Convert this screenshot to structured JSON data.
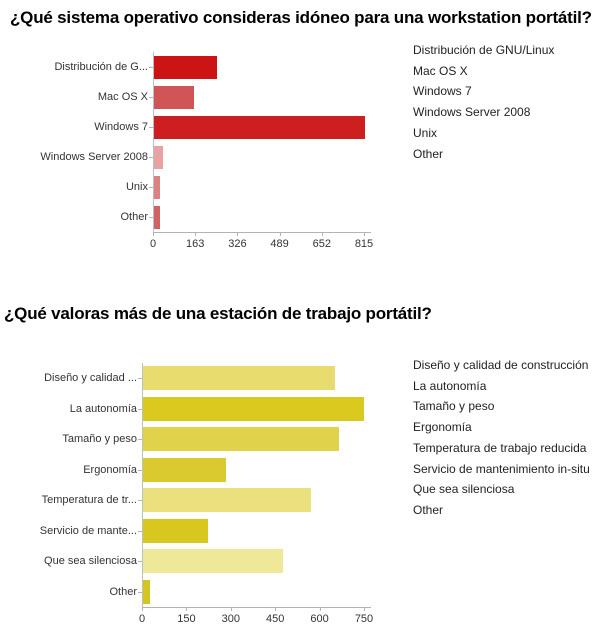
{
  "page_background": "#ffffff",
  "chart_data": [
    {
      "type": "bar",
      "orientation": "horizontal",
      "title": "¿Qué sistema operativo consideras idóneo para una workstation portátil?",
      "categories": [
        "Distribución de G...",
        "Mac OS X",
        "Windows 7",
        "Windows Server 2008",
        "Unix",
        "Other"
      ],
      "values": [
        245,
        155,
        815,
        34,
        23,
        22
      ],
      "bar_colors": [
        "#cc1414",
        "#cf5557",
        "#cd1f1f",
        "#e8a2a2",
        "#dd8181",
        "#d26262"
      ],
      "xlim": [
        0,
        815
      ],
      "xticks": [
        "0",
        "163",
        "326",
        "489",
        "652",
        "815"
      ],
      "xlabel": "",
      "ylabel": "",
      "grid": false,
      "legend_position": "right",
      "legend": [
        "Distribución de GNU/Linux",
        "Mac OS X",
        "Windows 7",
        "Windows Server 2008",
        "Unix",
        "Other"
      ]
    },
    {
      "type": "bar",
      "orientation": "horizontal",
      "title": "¿Qué valoras más de una estación de trabajo portátil?",
      "categories": [
        "Diseño y calidad ...",
        "La autonomía",
        "Tamaño y peso",
        "Ergonomía",
        "Temperatura de tr...",
        "Servicio de mante...",
        "Que sea silenciosa",
        "Other"
      ],
      "values": [
        650,
        745,
        663,
        280,
        567,
        219,
        474,
        22
      ],
      "bar_colors": [
        "#e7dc6d",
        "#dac91e",
        "#e0d24a",
        "#dbc930",
        "#eae07e",
        "#d8c71e",
        "#efe898",
        "#d6c51e"
      ],
      "xlim": [
        0,
        750
      ],
      "xticks": [
        "0",
        "150",
        "300",
        "450",
        "600",
        "750"
      ],
      "xlabel": "",
      "ylabel": "",
      "grid": false,
      "legend_position": "right",
      "legend": [
        "Diseño y calidad de construcción",
        "La autonomía",
        "Tamaño y peso",
        "Ergonomía",
        "Temperatura de trabajo reducida",
        "Servicio de mantenimiento in-situ",
        "Que sea silenciosa",
        "Other"
      ]
    }
  ]
}
